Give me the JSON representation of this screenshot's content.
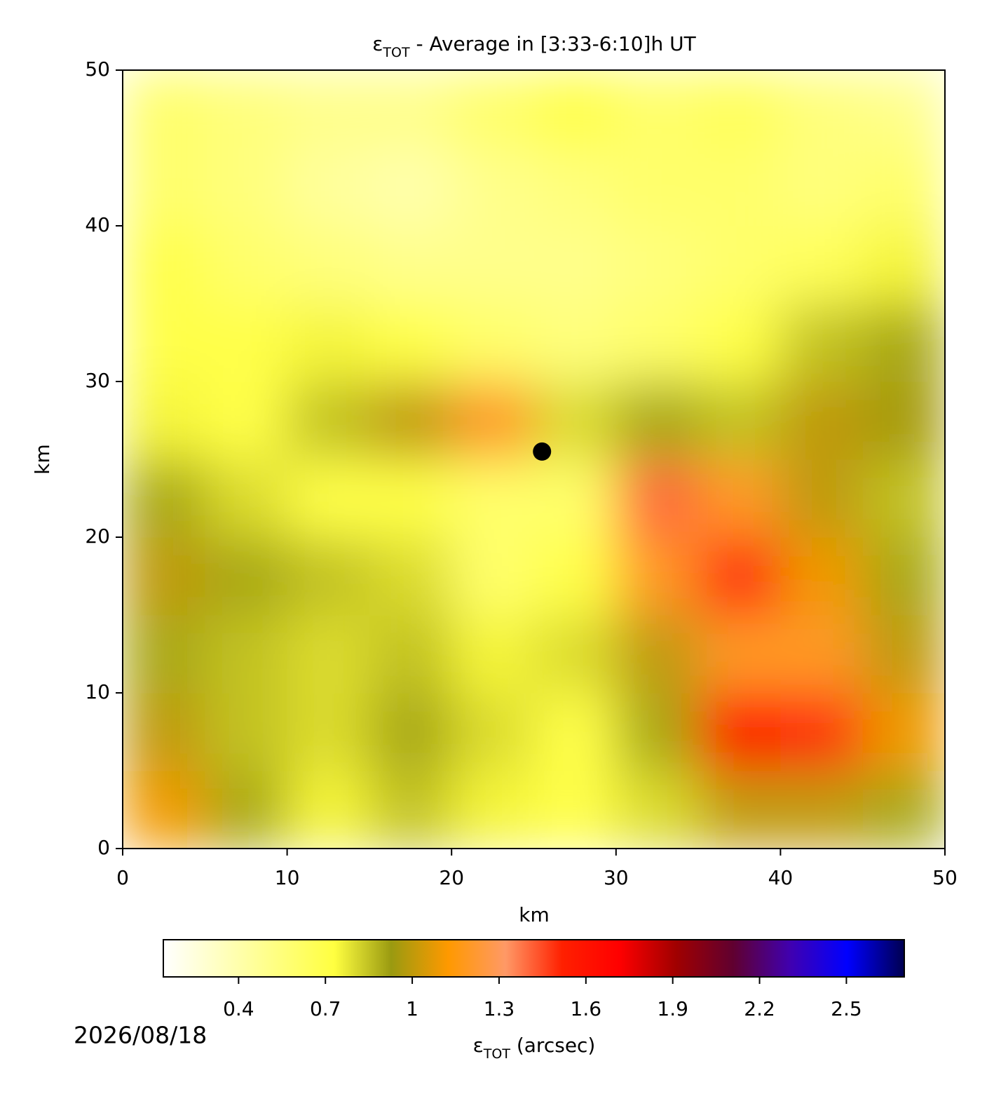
{
  "chart_data": {
    "type": "heatmap",
    "title": [
      "ε",
      "TOT",
      " - Average in [3:33-6:10]h UT"
    ],
    "xlabel": "km",
    "ylabel": "km",
    "xlim": [
      0,
      50
    ],
    "ylim": [
      0,
      50
    ],
    "xticks": [
      0,
      10,
      20,
      30,
      40,
      50
    ],
    "yticks": [
      0,
      10,
      20,
      30,
      40,
      50
    ],
    "x": [
      2.5,
      7.5,
      12.5,
      17.5,
      22.5,
      27.5,
      32.5,
      37.5,
      42.5,
      47.5
    ],
    "y": [
      2.5,
      7.5,
      12.5,
      17.5,
      22.5,
      27.5,
      32.5,
      37.5,
      42.5,
      47.5
    ],
    "z": [
      [
        1.1,
        0.9,
        0.75,
        0.85,
        0.75,
        0.7,
        0.8,
        1.0,
        1.0,
        0.9
      ],
      [
        1.0,
        0.85,
        0.8,
        0.9,
        0.8,
        0.7,
        0.9,
        1.7,
        1.5,
        1.1
      ],
      [
        0.9,
        0.85,
        0.8,
        0.85,
        0.75,
        0.8,
        1.0,
        1.2,
        1.2,
        1.0
      ],
      [
        1.0,
        0.9,
        0.85,
        0.8,
        0.6,
        0.7,
        1.2,
        1.5,
        1.1,
        0.9
      ],
      [
        0.9,
        0.8,
        0.7,
        0.7,
        0.6,
        0.6,
        1.4,
        1.2,
        1.0,
        0.85
      ],
      [
        0.75,
        0.7,
        0.85,
        1.0,
        1.2,
        0.8,
        0.9,
        0.85,
        1.0,
        0.95
      ],
      [
        0.7,
        0.7,
        0.75,
        0.7,
        0.6,
        0.55,
        0.6,
        0.7,
        0.85,
        0.9
      ],
      [
        0.7,
        0.6,
        0.55,
        0.5,
        0.5,
        0.5,
        0.55,
        0.6,
        0.65,
        0.75
      ],
      [
        0.6,
        0.55,
        0.45,
        0.4,
        0.5,
        0.55,
        0.6,
        0.6,
        0.55,
        0.6
      ],
      [
        0.6,
        0.55,
        0.5,
        0.5,
        0.6,
        0.7,
        0.6,
        0.65,
        0.55,
        0.5
      ]
    ],
    "marker": {
      "x": 25.5,
      "y": 25.5,
      "color": "#000000"
    },
    "clim": [
      0.14,
      2.7
    ],
    "colormap": [
      "#ffffff",
      "#ffffc0",
      "#ffff80",
      "#ffff40",
      "#9a9a10",
      "#ff9900",
      "#ff9966",
      "#ff2000",
      "#ff0000",
      "#a00000",
      "#600030",
      "#4000b0",
      "#0000ff",
      "#000050"
    ],
    "colorbar_ticks": [
      0.4,
      0.7,
      1.0,
      1.3,
      1.6,
      1.9,
      2.2,
      2.5
    ],
    "colorbar_label": [
      "ε",
      "TOT",
      " (arcsec)"
    ],
    "date": "2026/08/18"
  }
}
